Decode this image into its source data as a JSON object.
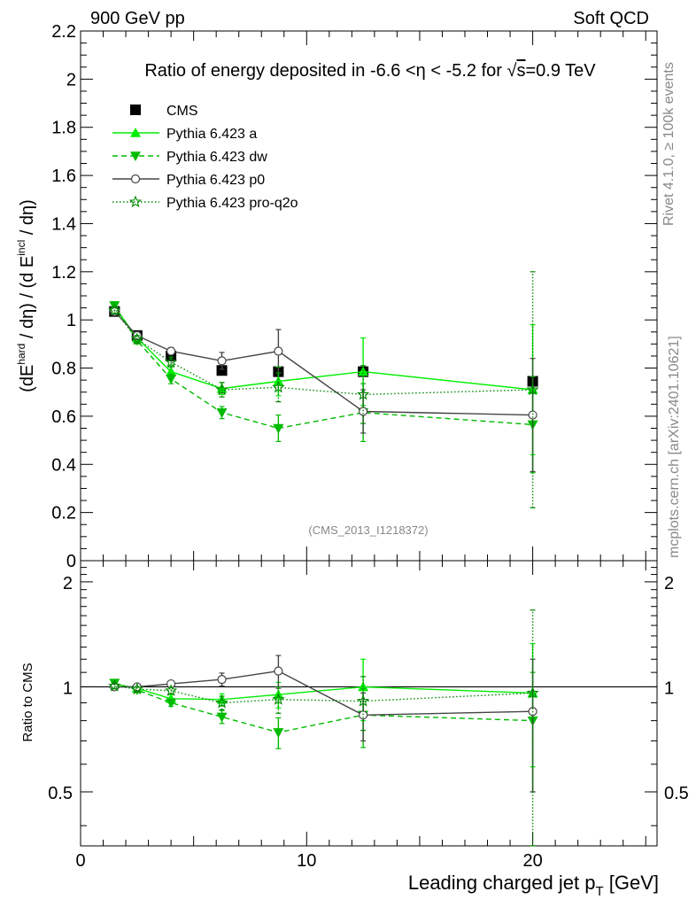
{
  "header": {
    "left": "900 GeV pp",
    "right": "Soft QCD"
  },
  "side_labels": {
    "rivet": "Rivet 4.1.0, ≥ 100k events",
    "mcplots": "mcplots.cern.ch [arXiv:2401.10621]"
  },
  "chart_data": [
    {
      "type": "line",
      "title": "Ratio of energy deposited in -6.6 <η < -5.2 for √s=0.9 TeV",
      "title_parts": {
        "pre": "Ratio of energy deposited in -6.6 <",
        "eta": "η",
        "mid": " < -5.2 for ",
        "root": "√",
        "s": "s",
        "post": "=0.9 TeV"
      },
      "ylabel": "(dE^hard / dη) / (d E^incl / dη)",
      "ylabel_parts": {
        "a": "(dE",
        "b": "hard",
        "c": " / dη) / (d E",
        "d": "incl",
        "e": " / dη)"
      },
      "watermark": "(CMS_2013_I1218372)",
      "xlim": [
        0,
        25.5
      ],
      "ylim": [
        0,
        2.2
      ],
      "yticks": [
        0,
        0.2,
        0.4,
        0.6,
        0.8,
        1,
        1.2,
        1.4,
        1.6,
        1.8,
        2,
        2.2
      ],
      "ytick_labels": [
        "0",
        "0.2",
        "0.4",
        "0.6",
        "0.8",
        "1",
        "1.2",
        "1.4",
        "1.6",
        "1.8",
        "2",
        "2.2"
      ],
      "x": [
        1.5,
        2.5,
        4.0,
        6.25,
        8.75,
        12.5,
        20.0
      ],
      "series": [
        {
          "name": "CMS",
          "color": "#000000",
          "marker": "square",
          "line": "none",
          "values": [
            1.035,
            0.935,
            0.85,
            0.79,
            0.785,
            0.785,
            0.745
          ],
          "errors": [
            0.015,
            0.01,
            0.01,
            0.01,
            0.01,
            0.01,
            0.01
          ]
        },
        {
          "name": "Pythia 6.423 a",
          "color": "#00ee00",
          "marker": "triangle-up",
          "line": "solid",
          "values": [
            1.055,
            0.925,
            0.785,
            0.715,
            0.745,
            0.785,
            0.71
          ],
          "errors": [
            0.02,
            0.02,
            0.02,
            0.025,
            0.06,
            0.14,
            0.27
          ]
        },
        {
          "name": "Pythia 6.423 dw",
          "color": "#00bb00",
          "marker": "triangle-down",
          "line": "dashed",
          "values": [
            1.06,
            0.915,
            0.755,
            0.615,
            0.55,
            0.615,
            0.565
          ],
          "errors": [
            0.015,
            0.015,
            0.02,
            0.025,
            0.055,
            0.12,
            0.2
          ]
        },
        {
          "name": "Pythia 6.423 p0",
          "color": "#444444",
          "marker": "circle-open",
          "line": "solid",
          "values": [
            1.035,
            0.935,
            0.87,
            0.83,
            0.87,
            0.62,
            0.605
          ],
          "errors": [
            0.015,
            0.015,
            0.015,
            0.035,
            0.09,
            0.09,
            0.235
          ]
        },
        {
          "name": "Pythia 6.423 pro-q2o",
          "color": "#008800",
          "marker": "star-open",
          "line": "dotted",
          "values": [
            1.04,
            0.92,
            0.825,
            0.71,
            0.72,
            0.69,
            0.71
          ],
          "errors": [
            0.015,
            0.015,
            0.02,
            0.03,
            0.06,
            0.12,
            0.49
          ]
        }
      ]
    },
    {
      "type": "line",
      "ylabel": "Ratio to CMS",
      "xlabel": "Leading charged jet p",
      "xlabel_sub": "T",
      "xlabel_unit": " [GeV]",
      "xlim": [
        0,
        25.5
      ],
      "ylim": [
        0.35,
        2.3
      ],
      "yscale": "log",
      "yticks": [
        0.5,
        1,
        2
      ],
      "ytick_labels": [
        "0.5",
        "1",
        "2"
      ],
      "xticks": [
        0,
        10,
        20
      ],
      "xtick_labels": [
        "0",
        "10",
        "20"
      ],
      "x": [
        1.5,
        2.5,
        4.0,
        6.25,
        8.75,
        12.5,
        20.0
      ],
      "series": [
        {
          "name": "Pythia 6.423 a",
          "color": "#00ee00",
          "marker": "triangle-up",
          "line": "solid",
          "values": [
            1.02,
            0.99,
            0.925,
            0.92,
            0.95,
            1.0,
            0.96
          ],
          "errors": [
            0.02,
            0.02,
            0.025,
            0.035,
            0.08,
            0.2,
            0.37
          ]
        },
        {
          "name": "Pythia 6.423 dw",
          "color": "#00bb00",
          "marker": "triangle-down",
          "line": "dashed",
          "values": [
            1.025,
            0.98,
            0.9,
            0.82,
            0.74,
            0.83,
            0.8
          ],
          "errors": [
            0.015,
            0.015,
            0.02,
            0.035,
            0.075,
            0.16,
            0.3
          ]
        },
        {
          "name": "Pythia 6.423 p0",
          "color": "#444444",
          "marker": "circle-open",
          "line": "solid",
          "values": [
            1.0,
            1.0,
            1.02,
            1.05,
            1.11,
            0.83,
            0.85
          ],
          "errors": [
            0.015,
            0.015,
            0.015,
            0.045,
            0.12,
            0.13,
            0.35
          ]
        },
        {
          "name": "Pythia 6.423 pro-q2o",
          "color": "#008800",
          "marker": "star-open",
          "line": "dotted",
          "values": [
            1.005,
            0.985,
            0.975,
            0.9,
            0.92,
            0.91,
            0.96
          ],
          "errors": [
            0.015,
            0.015,
            0.02,
            0.04,
            0.08,
            0.16,
            0.7
          ]
        }
      ]
    }
  ]
}
